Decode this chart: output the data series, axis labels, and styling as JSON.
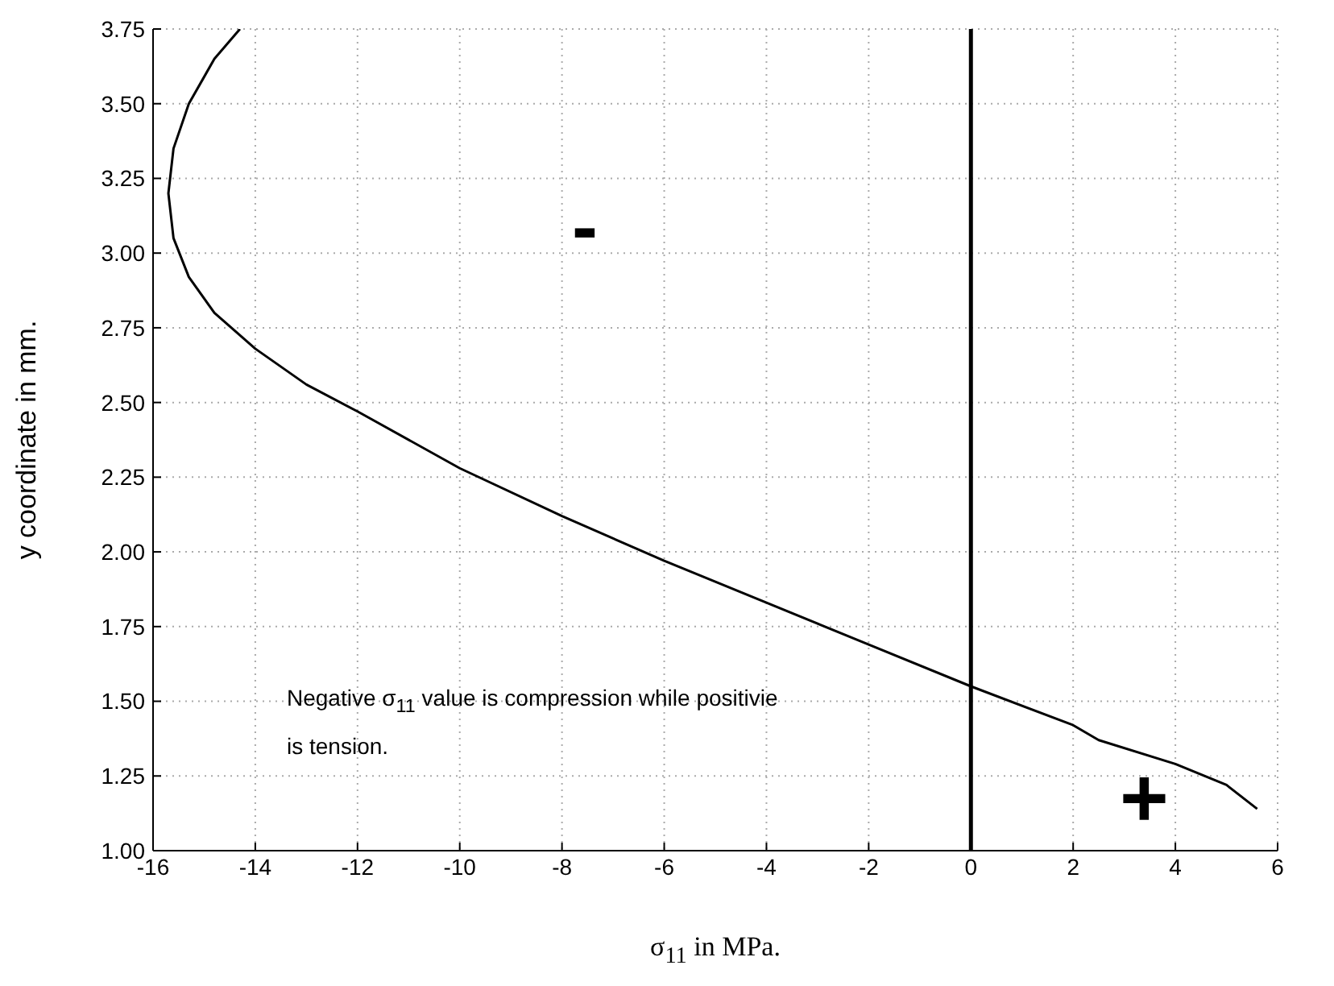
{
  "chart_data": {
    "type": "line",
    "xlabel": "σ$_{11}$ in MPa.",
    "ylabel": "y coordinate in mm.",
    "x": [
      -14.3,
      -14.8,
      -15.3,
      -15.6,
      -15.7,
      -15.6,
      -15.3,
      -14.8,
      -14,
      -13,
      -12,
      -10,
      -8,
      -6,
      -4,
      -2,
      0,
      2,
      2.5,
      4,
      5,
      5.6
    ],
    "series": [
      {
        "color": "#000000",
        "values": [
          3.75,
          3.65,
          3.5,
          3.35,
          3.2,
          3.05,
          2.92,
          2.8,
          2.68,
          2.56,
          2.47,
          2.28,
          2.12,
          1.97,
          1.83,
          1.69,
          1.55,
          1.42,
          1.37,
          1.29,
          1.22,
          1.14
        ]
      }
    ],
    "xlim": [
      -16,
      6
    ],
    "xticks": [
      -16,
      -14,
      -12,
      -10,
      -8,
      -6,
      -4,
      -2,
      0,
      2,
      4,
      6
    ],
    "ylim": [
      1,
      3.75
    ],
    "yticks": [
      {
        "value": 1,
        "label": "1.00"
      },
      {
        "value": 1.25,
        "label": "1.25"
      },
      {
        "value": 1.5,
        "label": "1.50"
      },
      {
        "value": 1.75,
        "label": "1.75"
      },
      {
        "value": 2,
        "label": "2.00"
      },
      {
        "value": 2.25,
        "label": "2.25"
      },
      {
        "value": 2.5,
        "label": "2.50"
      },
      {
        "value": 2.75,
        "label": "2.75"
      },
      {
        "value": 3,
        "label": "3.00"
      },
      {
        "value": 3.25,
        "label": "3.25"
      },
      {
        "value": 3.5,
        "label": "3.50"
      },
      {
        "value": 3.75,
        "label": "3.75"
      }
    ],
    "grid": true,
    "marker": "none",
    "line_style": "solid",
    "ref_lines": [
      {
        "axis": "x",
        "value": 0,
        "color": "#000000"
      }
    ],
    "annotations": [
      "-",
      "+",
      "Negative σ$_{11}$ value is compression while positivie is tension."
    ]
  }
}
